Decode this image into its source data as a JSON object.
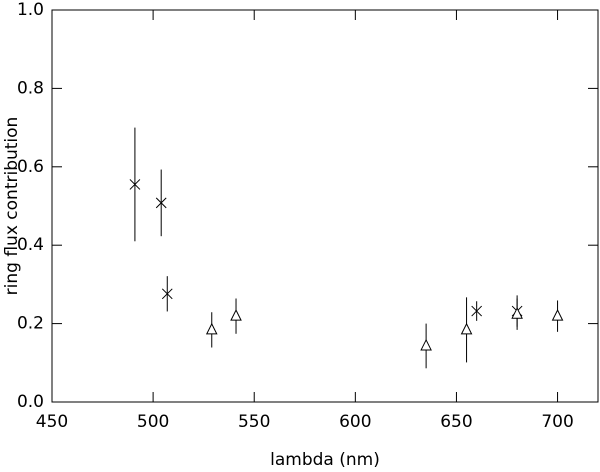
{
  "chart_data": {
    "type": "scatter",
    "xlabel": "lambda (nm)",
    "ylabel": "ring flux contribution",
    "xlim": [
      450,
      720
    ],
    "ylim": [
      0,
      1
    ],
    "xticks": [
      450,
      500,
      550,
      600,
      650,
      700
    ],
    "yticks": [
      {
        "value": 0,
        "label": "0.0"
      },
      0.2,
      0.4,
      0.6,
      0.8,
      {
        "value": 1,
        "label": "1.0"
      }
    ],
    "color": "#000000",
    "series": [
      {
        "marker": "x",
        "x": [
          491,
          504,
          507,
          660,
          680
        ],
        "values": [
          0.555,
          0.508,
          0.276,
          0.232,
          0.232
        ],
        "errors": [
          0.145,
          0.085,
          0.045,
          0.025,
          0.04
        ]
      },
      {
        "marker": "triangle",
        "x": [
          529,
          541,
          635,
          655,
          680,
          700
        ],
        "values": [
          0.184,
          0.219,
          0.143,
          0.184,
          0.224,
          0.219
        ],
        "errors": [
          0.045,
          0.045,
          0.057,
          0.083,
          0.04,
          0.04
        ]
      }
    ]
  }
}
